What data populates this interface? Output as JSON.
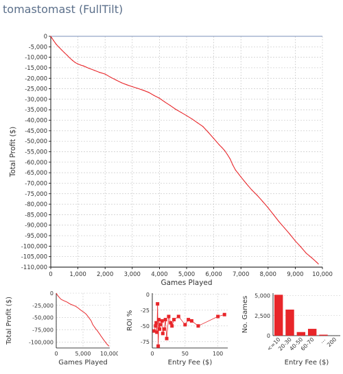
{
  "title": "tomastomast (FullTilt)",
  "colors": {
    "series": "#e8262a",
    "grid": "#c8c8c8",
    "axis": "#000000",
    "text": "#333333",
    "title": "#5b6f8a"
  },
  "chart_data": [
    {
      "type": "line",
      "xlabel": "Games Played",
      "ylabel": "Total Profit ($)",
      "xlim": [
        0,
        10000
      ],
      "ylim": [
        -110000,
        0
      ],
      "xticks": [
        "0",
        "1,000",
        "2,000",
        "3,000",
        "4,000",
        "5,000",
        "6,000",
        "7,000",
        "8,000",
        "9,000",
        "10,000"
      ],
      "yticks": [
        "0",
        "-5,000",
        "-10,000",
        "-15,000",
        "-20,000",
        "-25,000",
        "-30,000",
        "-35,000",
        "-40,000",
        "-45,000",
        "-50,000",
        "-55,000",
        "-60,000",
        "-65,000",
        "-70,000",
        "-75,000",
        "-80,000",
        "-85,000",
        "-90,000",
        "-95,000",
        "-100,000",
        "-105,000",
        "-110,000"
      ],
      "grid": true,
      "x": [
        0,
        50,
        100,
        200,
        300,
        400,
        500,
        600,
        700,
        800,
        900,
        1000,
        1100,
        1200,
        1400,
        1600,
        1800,
        2000,
        2200,
        2400,
        2600,
        2800,
        3000,
        3200,
        3400,
        3600,
        3800,
        4000,
        4200,
        4400,
        4600,
        4800,
        5000,
        5200,
        5400,
        5600,
        5800,
        6000,
        6100,
        6200,
        6300,
        6400,
        6500,
        6600,
        6700,
        6800,
        7000,
        7200,
        7400,
        7600,
        7800,
        8000,
        8200,
        8400,
        8600,
        8800,
        9000,
        9200,
        9400,
        9600,
        9800,
        9850
      ],
      "y": [
        0,
        -1000,
        -2000,
        -3800,
        -5200,
        -6500,
        -7800,
        -9000,
        -10300,
        -11500,
        -12500,
        -13200,
        -13700,
        -14100,
        -15200,
        -16200,
        -17200,
        -18000,
        -19500,
        -20800,
        -22100,
        -23100,
        -24000,
        -24800,
        -25700,
        -26700,
        -28200,
        -29500,
        -31300,
        -33000,
        -34800,
        -36300,
        -37800,
        -39400,
        -41200,
        -43000,
        -45800,
        -48700,
        -50200,
        -51700,
        -53000,
        -54400,
        -56300,
        -58400,
        -61300,
        -63700,
        -67000,
        -70200,
        -73200,
        -75800,
        -78700,
        -81700,
        -85000,
        -88300,
        -91300,
        -94300,
        -97500,
        -100300,
        -103300,
        -105500,
        -107800,
        -108500
      ]
    },
    {
      "type": "line",
      "xlabel": "Games Played",
      "ylabel": "Total Profit ($)",
      "xlim": [
        0,
        10000
      ],
      "ylim": [
        -112000,
        0
      ],
      "xticks": [
        "0",
        "5,000",
        "10,000"
      ],
      "yticks": [
        "0",
        "-25,000",
        "-50,000",
        "-75,000",
        "-100,000"
      ],
      "grid": true
    },
    {
      "type": "scatter",
      "xlabel": "Entry Fee ($)",
      "ylabel": "ROI %",
      "xlim": [
        0,
        115
      ],
      "ylim": [
        -85,
        2
      ],
      "xticks": [
        "0",
        "50",
        "100"
      ],
      "yticks": [
        "0",
        "-25",
        "-50",
        "-75"
      ],
      "grid": true,
      "x": [
        3,
        5,
        6,
        7,
        8,
        9,
        10,
        11,
        12,
        15,
        16,
        18,
        20,
        22,
        25,
        28,
        30,
        33,
        40,
        50,
        55,
        60,
        70,
        100,
        110
      ],
      "y": [
        -58,
        -50,
        -45,
        -60,
        -15,
        -82,
        -40,
        -55,
        -48,
        -42,
        -62,
        -55,
        -40,
        -70,
        -35,
        -45,
        -50,
        -40,
        -35,
        -48,
        -40,
        -42,
        -50,
        -35,
        -32
      ]
    },
    {
      "type": "bar",
      "xlabel": "Entry Fee ($)",
      "ylabel": "No. Games",
      "ylim": [
        0,
        5300
      ],
      "yticks": [
        "5,000",
        "2,500",
        "0"
      ],
      "categories": [
        "<=10",
        "20-30",
        "40-50",
        "60-70",
        "...",
        "200"
      ],
      "values": [
        5100,
        3250,
        450,
        850,
        120,
        0
      ],
      "grid": true
    }
  ]
}
